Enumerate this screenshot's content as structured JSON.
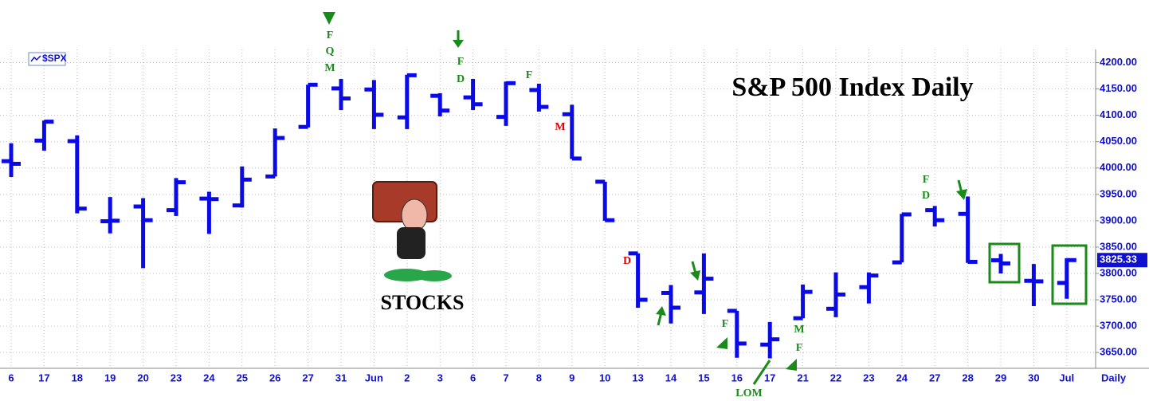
{
  "chart_data": {
    "type": "ohlc",
    "title": "S&P 500 Index Daily",
    "caption": "STOCKS",
    "period": "Daily",
    "categories": [
      "6",
      "17",
      "18",
      "19",
      "20",
      "23",
      "24",
      "25",
      "26",
      "27",
      "31",
      "Jun",
      "2",
      "3",
      "6",
      "7",
      "8",
      "9",
      "10",
      "13",
      "14",
      "15",
      "16",
      "17",
      "21",
      "22",
      "23",
      "24",
      "27",
      "28",
      "29",
      "30",
      "Jul"
    ],
    "series": [
      {
        "name": "$SPX",
        "color": "#0a0ae6",
        "open": [
          4013,
          4052,
          4051,
          3899,
          3927,
          3920,
          3942,
          3929,
          3984,
          4078,
          4151,
          4149,
          4096,
          4137,
          4134,
          4097,
          4148,
          4102,
          3974,
          3838,
          3763,
          3764,
          3729,
          3665,
          3715,
          3733,
          3774,
          3821,
          3920,
          3913,
          3825,
          3786,
          3782
        ],
        "high": [
          4047,
          4090,
          4062,
          3945,
          3943,
          3981,
          3955,
          4003,
          4075,
          4158,
          4169,
          4167,
          4177,
          4142,
          4169,
          4164,
          4160,
          4120,
          3974,
          3838,
          3778,
          3838,
          3729,
          3708,
          3779,
          3802,
          3802,
          3913,
          3928,
          3946,
          3837,
          3818,
          3829
        ],
        "low": [
          3983,
          4033,
          3914,
          3876,
          3810,
          3909,
          3875,
          3925,
          3984,
          4077,
          4110,
          4074,
          4074,
          4098,
          4110,
          4080,
          4107,
          4017,
          3900,
          3735,
          3705,
          3723,
          3640,
          3639,
          3715,
          3717,
          3743,
          3821,
          3889,
          3820,
          3800,
          3738,
          3752
        ],
        "close": [
          4008,
          4088,
          3923,
          3900,
          3901,
          3973,
          3941,
          3978,
          4057,
          4158,
          4132,
          4101,
          4176,
          4109,
          4121,
          4161,
          4116,
          4018,
          3901,
          3750,
          3735,
          3790,
          3667,
          3675,
          3765,
          3760,
          3796,
          3912,
          3901,
          3822,
          3819,
          3785,
          3825.33
        ]
      }
    ],
    "last_price": 3825.33,
    "ylim": [
      3620,
      4225
    ],
    "yticks": [
      {
        "value": 3650,
        "label": "3650.00"
      },
      {
        "value": 3700,
        "label": "3700.00"
      },
      {
        "value": 3750,
        "label": "3750.00"
      },
      {
        "value": 3800,
        "label": "3800.00"
      },
      {
        "value": 3850,
        "label": "3850.00"
      },
      {
        "value": 3900,
        "label": "3900.00"
      },
      {
        "value": 3950,
        "label": "3950.00"
      },
      {
        "value": 4000,
        "label": "4000.00"
      },
      {
        "value": 4050,
        "label": "4050.00"
      },
      {
        "value": 4100,
        "label": "4100.00"
      },
      {
        "value": 4150,
        "label": "4150.00"
      },
      {
        "value": 4200,
        "label": "4200.00"
      }
    ],
    "grid": true,
    "annotations": [
      {
        "text": "F",
        "color": "#1a8a1a"
      },
      {
        "text": "Q",
        "color": "#1a8a1a"
      },
      {
        "text": "M",
        "color": "#1a8a1a"
      },
      {
        "text": "F",
        "color": "#1a8a1a"
      },
      {
        "text": "D",
        "color": "#1a8a1a"
      },
      {
        "text": "F",
        "color": "#1a8a1a"
      },
      {
        "text": "M",
        "color": "#e00000"
      },
      {
        "text": "D",
        "color": "#e00000"
      },
      {
        "text": "F",
        "color": "#1a8a1a"
      },
      {
        "text": "LOM",
        "color": "#1a8a1a"
      },
      {
        "text": "M",
        "color": "#1a8a1a"
      },
      {
        "text": "F",
        "color": "#1a8a1a"
      },
      {
        "text": "F",
        "color": "#1a8a1a"
      },
      {
        "text": "D",
        "color": "#1a8a1a"
      }
    ]
  }
}
